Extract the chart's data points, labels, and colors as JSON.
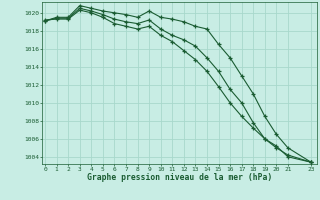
{
  "title": "Graphe pression niveau de la mer (hPa)",
  "bg_color": "#c8ede4",
  "grid_color": "#a8d8cc",
  "line_color": "#1a5c32",
  "xlim": [
    -0.3,
    23.5
  ],
  "ylim": [
    1003.2,
    1021.2
  ],
  "yticks": [
    1004,
    1006,
    1008,
    1010,
    1012,
    1014,
    1016,
    1018,
    1020
  ],
  "xticks": [
    0,
    1,
    2,
    3,
    4,
    5,
    6,
    7,
    8,
    9,
    10,
    11,
    12,
    13,
    14,
    15,
    16,
    17,
    18,
    19,
    20,
    21,
    23
  ],
  "series1": {
    "x": [
      0,
      1,
      2,
      3,
      4,
      5,
      6,
      7,
      8,
      9,
      10,
      11,
      12,
      13,
      14,
      15,
      16,
      17,
      18,
      19,
      20,
      21,
      23
    ],
    "y": [
      1019.1,
      1019.5,
      1019.5,
      1020.8,
      1020.5,
      1020.2,
      1020.0,
      1019.8,
      1019.5,
      1020.2,
      1019.5,
      1019.3,
      1019.0,
      1018.5,
      1018.2,
      1016.5,
      1015.0,
      1013.0,
      1011.0,
      1008.5,
      1006.5,
      1005.0,
      1003.4
    ]
  },
  "series2": {
    "x": [
      0,
      1,
      2,
      3,
      4,
      5,
      6,
      7,
      8,
      9,
      10,
      11,
      12,
      13,
      14,
      15,
      16,
      17,
      18,
      19,
      20,
      21,
      23
    ],
    "y": [
      1019.1,
      1019.4,
      1019.4,
      1020.5,
      1020.2,
      1019.8,
      1019.3,
      1019.0,
      1018.8,
      1019.2,
      1018.2,
      1017.5,
      1017.0,
      1016.3,
      1015.0,
      1013.5,
      1011.5,
      1010.0,
      1007.8,
      1006.0,
      1005.0,
      1004.2,
      1003.4
    ]
  },
  "series3": {
    "x": [
      0,
      1,
      2,
      3,
      4,
      5,
      6,
      7,
      8,
      9,
      10,
      11,
      12,
      13,
      14,
      15,
      16,
      17,
      18,
      19,
      20,
      21,
      23
    ],
    "y": [
      1019.2,
      1019.3,
      1019.3,
      1020.3,
      1020.0,
      1019.5,
      1018.8,
      1018.5,
      1018.2,
      1018.5,
      1017.5,
      1016.8,
      1015.8,
      1014.8,
      1013.5,
      1011.8,
      1010.0,
      1008.5,
      1007.2,
      1006.0,
      1005.2,
      1004.0,
      1003.4
    ]
  }
}
